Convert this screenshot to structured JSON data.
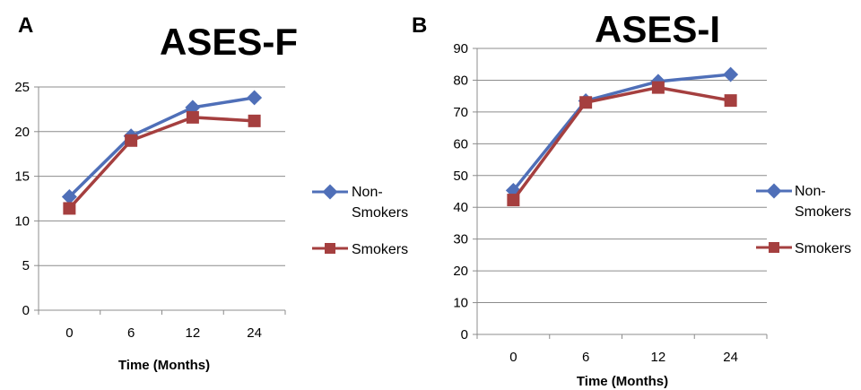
{
  "chart_data": [
    {
      "type": "line",
      "panel_label": "A",
      "title": "ASES-F",
      "xlabel": "Time (Months)",
      "ylabel": "",
      "categories": [
        "0",
        "6",
        "12",
        "24"
      ],
      "ylim": [
        0,
        25
      ],
      "yticks": [
        0,
        5,
        10,
        15,
        20,
        25
      ],
      "grid": true,
      "legend_position": "right",
      "series": [
        {
          "name": "Non-Smokers",
          "values": [
            12.7,
            19.5,
            22.7,
            23.8
          ],
          "color": "#4F6FB8",
          "marker": "diamond"
        },
        {
          "name": "Smokers",
          "values": [
            11.4,
            19.0,
            21.6,
            21.2
          ],
          "color": "#A53F3F",
          "marker": "square"
        }
      ]
    },
    {
      "type": "line",
      "panel_label": "B",
      "title": "ASES-I",
      "xlabel": "Time (Months)",
      "ylabel": "",
      "categories": [
        "0",
        "6",
        "12",
        "24"
      ],
      "ylim": [
        0,
        90
      ],
      "yticks": [
        0,
        10,
        20,
        30,
        40,
        50,
        60,
        70,
        80,
        90
      ],
      "grid": true,
      "legend_position": "right",
      "series": [
        {
          "name": "Non-Smokers",
          "values": [
            45.3,
            73.5,
            79.6,
            81.8
          ],
          "color": "#4F6FB8",
          "marker": "diamond"
        },
        {
          "name": "Smokers",
          "values": [
            42.3,
            73.0,
            77.7,
            73.6
          ],
          "color": "#A53F3F",
          "marker": "square"
        }
      ]
    }
  ]
}
